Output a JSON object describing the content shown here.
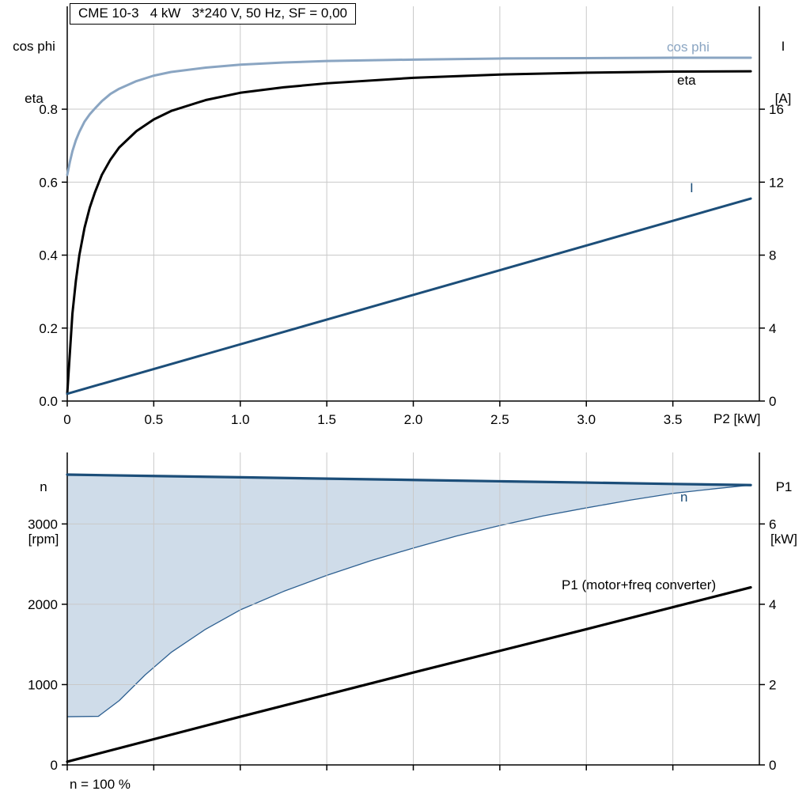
{
  "colors": {
    "cos_phi": "#8aa5c2",
    "dark_blue": "#1c4e79",
    "black": "#000000",
    "grid": "#c9c9c9",
    "axis": "#000000",
    "area_fill": "#cfdce9",
    "area_edge": "#2e6091"
  },
  "top_chart": {
    "title": "CME 10-3   4 kW   3*240 V, 50 Hz, SF = 0,00",
    "left_axis_line1": "cos phi",
    "left_axis_line2": "eta",
    "right_axis_line1": "I",
    "right_axis_line2": "[A]",
    "x_axis_label": "P2 [kW]",
    "curve_labels": {
      "cos_phi": "cos phi",
      "eta": "eta",
      "current": "I"
    }
  },
  "bottom_chart": {
    "left_axis_line1": "n",
    "left_axis_line2": "[rpm]",
    "right_axis_line1": "P1",
    "right_axis_line2": "[kW]",
    "curve_labels": {
      "n": "n",
      "p1": "P1 (motor+freq converter)"
    },
    "footnote": "n = 100 %"
  },
  "chart_data": [
    {
      "id": "top",
      "type": "line",
      "title": "CME 10-3   4 kW   3*240 V, 50 Hz, SF = 0,00",
      "xlabel": "P2 [kW]",
      "ylabel_left": "cos phi / eta",
      "ylabel_right": "I [A]",
      "xlim": [
        0,
        4.0
      ],
      "ylim_left": [
        0,
        1.082
      ],
      "ylim_right": [
        0,
        21.64
      ],
      "xticks": [
        0,
        0.5,
        1.0,
        1.5,
        2.0,
        2.5,
        3.0,
        3.5
      ],
      "xtick_labels": [
        "0",
        "0.5",
        "1.0",
        "1.5",
        "2.0",
        "2.5",
        "3.0",
        "3.5"
      ],
      "yticks_left": [
        0,
        0.2,
        0.4,
        0.6,
        0.8
      ],
      "ytick_labels_left": [
        "0.0",
        "0.2",
        "0.4",
        "0.6",
        "0.8"
      ],
      "yticks_right": [
        0,
        4,
        8,
        12,
        16
      ],
      "ytick_labels_right": [
        "0",
        "4",
        "8",
        "12",
        "16"
      ],
      "grid": true,
      "legend_position": "inline-labels",
      "series": [
        {
          "name": "cos phi",
          "axis": "left",
          "color": "#8aa5c2",
          "width": 3,
          "x": [
            0,
            0.015,
            0.03,
            0.05,
            0.07,
            0.1,
            0.13,
            0.16,
            0.2,
            0.25,
            0.3,
            0.4,
            0.5,
            0.6,
            0.8,
            1.0,
            1.25,
            1.5,
            2.0,
            2.5,
            3.0,
            3.5,
            3.95
          ],
          "y": [
            0.62,
            0.655,
            0.685,
            0.715,
            0.738,
            0.766,
            0.786,
            0.802,
            0.822,
            0.842,
            0.856,
            0.877,
            0.892,
            0.902,
            0.914,
            0.922,
            0.928,
            0.932,
            0.936,
            0.939,
            0.94,
            0.941,
            0.941
          ]
        },
        {
          "name": "eta",
          "axis": "left",
          "color": "#000000",
          "width": 3,
          "x": [
            0,
            0.015,
            0.03,
            0.05,
            0.07,
            0.1,
            0.13,
            0.16,
            0.2,
            0.25,
            0.3,
            0.4,
            0.5,
            0.6,
            0.8,
            1.0,
            1.25,
            1.5,
            2.0,
            2.5,
            3.0,
            3.5,
            3.95
          ],
          "y": [
            0.02,
            0.13,
            0.24,
            0.33,
            0.4,
            0.475,
            0.53,
            0.572,
            0.62,
            0.662,
            0.695,
            0.74,
            0.772,
            0.795,
            0.825,
            0.845,
            0.86,
            0.871,
            0.886,
            0.895,
            0.9,
            0.903,
            0.904
          ]
        },
        {
          "name": "I",
          "axis": "right",
          "color": "#1c4e79",
          "width": 3,
          "x": [
            0,
            2.0,
            3.95
          ],
          "y": [
            0.4,
            5.82,
            11.1
          ]
        }
      ]
    },
    {
      "id": "bottom",
      "type": "line",
      "xlabel": "",
      "ylabel_left": "n [rpm]",
      "ylabel_right": "P1 [kW]",
      "xlim": [
        0,
        4.0
      ],
      "ylim_left": [
        0,
        3890
      ],
      "ylim_right": [
        0,
        7.78
      ],
      "xticks": [
        0,
        0.5,
        1.0,
        1.5,
        2.0,
        2.5,
        3.0,
        3.5
      ],
      "yticks_left": [
        0,
        1000,
        2000,
        3000
      ],
      "ytick_labels_left": [
        "0",
        "1000",
        "2000",
        "3000"
      ],
      "yticks_right": [
        0,
        2,
        4,
        6
      ],
      "ytick_labels_right": [
        "0",
        "2",
        "4",
        "6"
      ],
      "grid": true,
      "annotation": "n = 100 %",
      "series": [
        {
          "name": "speed control range",
          "type": "area",
          "axis": "left",
          "fill": "#cfdce9",
          "edge_color": "#2e6091",
          "edge_width": 1.3,
          "lower": {
            "x": [
              0,
              0.18,
              0.3,
              0.45,
              0.6,
              0.8,
              1.0,
              1.25,
              1.5,
              1.75,
              2.0,
              2.25,
              2.5,
              2.75,
              3.0,
              3.25,
              3.5,
              3.75,
              3.95
            ],
            "y": [
              600,
              605,
              800,
              1120,
              1400,
              1690,
              1930,
              2160,
              2360,
              2540,
              2700,
              2850,
              2980,
              3100,
              3200,
              3295,
              3380,
              3440,
              3484
            ]
          },
          "upper": {
            "x": [
              0,
              0.5,
              1.0,
              1.5,
              2.0,
              2.5,
              3.0,
              3.5,
              3.95
            ],
            "y": [
              3614,
              3597,
              3581,
              3564,
              3548,
              3531,
              3515,
              3498,
              3484
            ]
          }
        },
        {
          "name": "n",
          "axis": "left",
          "color": "#1c4e79",
          "width": 3.2,
          "x": [
            0,
            0.5,
            1.0,
            1.5,
            2.0,
            2.5,
            3.0,
            3.5,
            3.95
          ],
          "y": [
            3614,
            3597,
            3581,
            3564,
            3548,
            3531,
            3515,
            3498,
            3484
          ]
        },
        {
          "name": "P1 (motor+freq converter)",
          "axis": "right",
          "color": "#000000",
          "width": 3.2,
          "x": [
            0,
            1.0,
            2.0,
            3.0,
            3.95
          ],
          "y": [
            0.08,
            1.2,
            2.3,
            3.38,
            4.42
          ]
        }
      ]
    }
  ]
}
